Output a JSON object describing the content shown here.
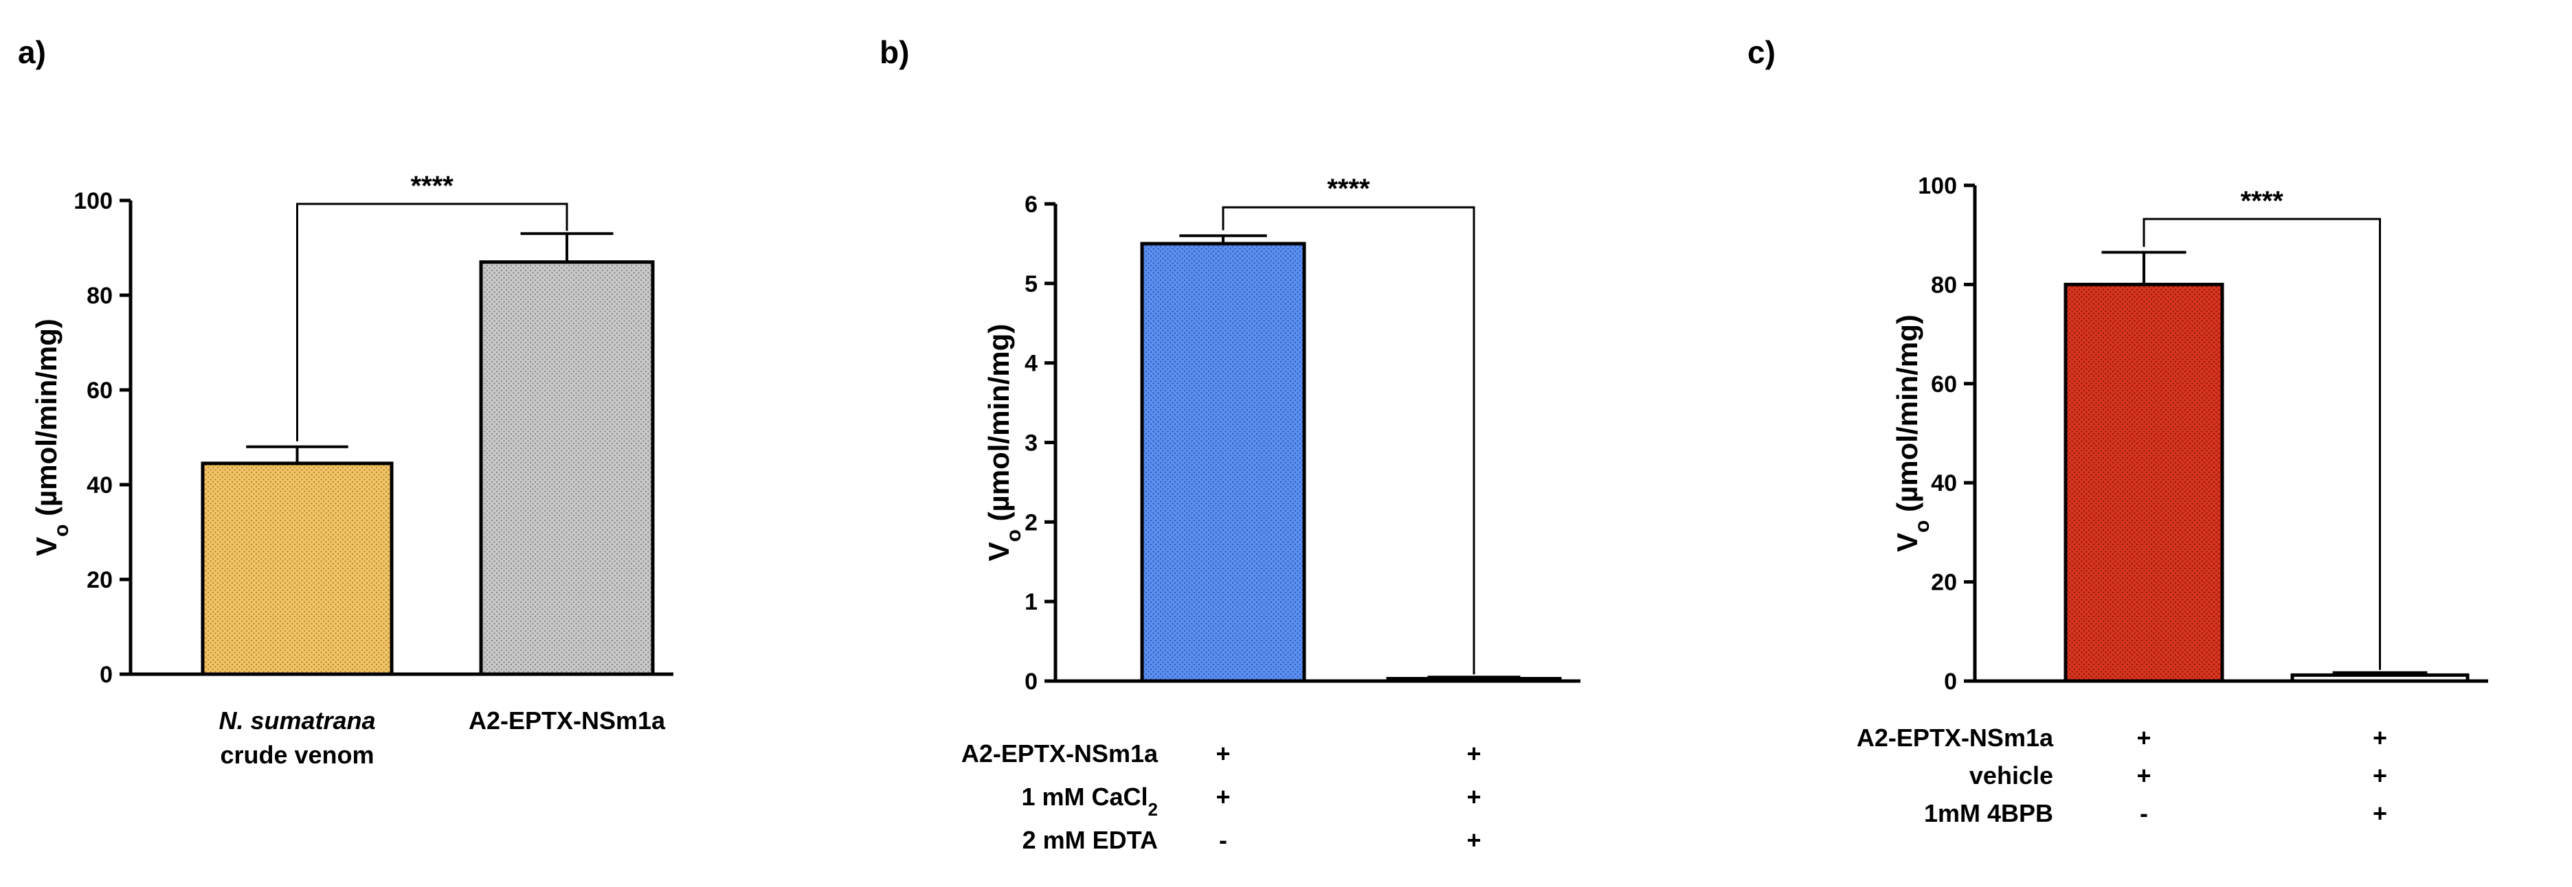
{
  "chart_data": [
    {
      "panel": "a)",
      "type": "bar",
      "ylabel": "V",
      "ylabel_sub": "o",
      "ylabel_rest": " (µmol/min/mg)",
      "ylim": [
        0,
        100
      ],
      "yticks": [
        "0",
        "20",
        "40",
        "60",
        "80",
        "100"
      ],
      "ytick_values": [
        0,
        20,
        40,
        60,
        80,
        100
      ],
      "categories": [
        {
          "line1": "N. sumatrana",
          "line2": "crude venom",
          "italic_line1": true
        },
        {
          "line1": "A2-EPTX-NSm1a",
          "line2": "",
          "italic_line1": false
        }
      ],
      "values": [
        44.5,
        87
      ],
      "errors": [
        3.5,
        6
      ],
      "colors": [
        "#f2c469",
        "#c9c9c9"
      ],
      "significance": "****"
    },
    {
      "panel": "b)",
      "type": "bar",
      "ylabel": "V",
      "ylabel_sub": "o",
      "ylabel_rest": " (µmol/min/mg)",
      "ylim": [
        0,
        6
      ],
      "yticks": [
        "0",
        "1",
        "2",
        "3",
        "4",
        "5",
        "6"
      ],
      "ytick_values": [
        0,
        1,
        2,
        3,
        4,
        5,
        6
      ],
      "values": [
        5.5,
        0.03
      ],
      "errors": [
        0.1,
        0.02
      ],
      "colors": [
        "#5b8ff0",
        "#ffffff"
      ],
      "significance": "****",
      "conditions": [
        {
          "label": "A2-EPTX-NSm1a",
          "sub": "",
          "label_end": "",
          "marks": [
            "+",
            "+"
          ]
        },
        {
          "label": "1 mM CaCl",
          "sub": "2",
          "label_end": "",
          "marks": [
            "+",
            "+"
          ]
        },
        {
          "label": "2 mM EDTA",
          "sub": "",
          "label_end": "",
          "marks": [
            "-",
            "+"
          ]
        }
      ]
    },
    {
      "panel": "c)",
      "type": "bar",
      "ylabel": "V",
      "ylabel_sub": "o",
      "ylabel_rest": " (µmol/min/mg)",
      "ylim": [
        0,
        100
      ],
      "yticks": [
        "0",
        "20",
        "40",
        "60",
        "80",
        "100"
      ],
      "ytick_values": [
        0,
        20,
        40,
        60,
        80,
        100
      ],
      "values": [
        80,
        1.2
      ],
      "errors": [
        6.5,
        0.5
      ],
      "colors": [
        "#d8341f",
        "#ffffff"
      ],
      "significance": "****",
      "conditions": [
        {
          "label": "A2-EPTX-NSm1a",
          "sub": "",
          "label_end": "",
          "marks": [
            "+",
            "+"
          ]
        },
        {
          "label": "vehicle",
          "sub": "",
          "label_end": "",
          "marks": [
            "+",
            "+"
          ]
        },
        {
          "label": "1mM 4BPB",
          "sub": "",
          "label_end": "",
          "marks": [
            "-",
            "+"
          ]
        }
      ]
    }
  ]
}
